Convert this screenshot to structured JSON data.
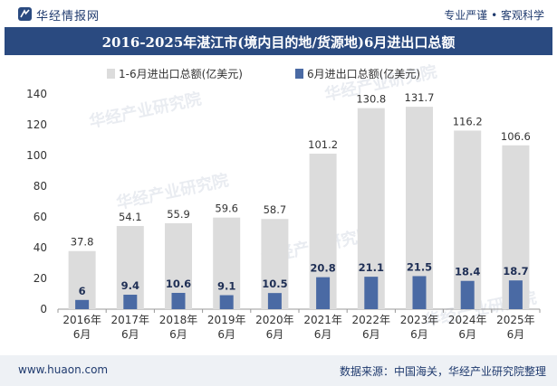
{
  "header": {
    "brand": "华经情报网",
    "slogan": "专业严谨 • 客观科学"
  },
  "title": "2016-2025年湛江市(境内目的地/货源地)6月进出口总额",
  "footer": {
    "url": "www.huaon.com",
    "source": "数据来源：中国海关，华经产业研究院整理"
  },
  "watermark": "华经产业研究院",
  "colors": {
    "header_band": "#2a4a80",
    "series_cumulative": "#dcdcdc",
    "series_june": "#4a6aa4"
  },
  "chart_data": {
    "type": "bar",
    "categories": [
      "2016年\n6月",
      "2017年\n6月",
      "2018年\n6月",
      "2019年\n6月",
      "2020年\n6月",
      "2021年\n6月",
      "2022年\n6月",
      "2023年\n6月",
      "2024年\n6月",
      "2025年\n6月"
    ],
    "series": [
      {
        "name": "1-6月进出口总额(亿美元)",
        "values": [
          37.8,
          54.1,
          55.9,
          59.6,
          58.7,
          101.2,
          130.8,
          131.7,
          116.2,
          106.6
        ]
      },
      {
        "name": "6月进出口总额(亿美元)",
        "values": [
          6,
          9.4,
          10.6,
          9.1,
          10.5,
          20.8,
          21.1,
          21.5,
          18.4,
          18.7
        ]
      }
    ],
    "ylim": [
      0,
      140
    ],
    "yticks": [
      0,
      20,
      40,
      60,
      80,
      100,
      120,
      140
    ],
    "legend": "top-left",
    "grid": false
  }
}
